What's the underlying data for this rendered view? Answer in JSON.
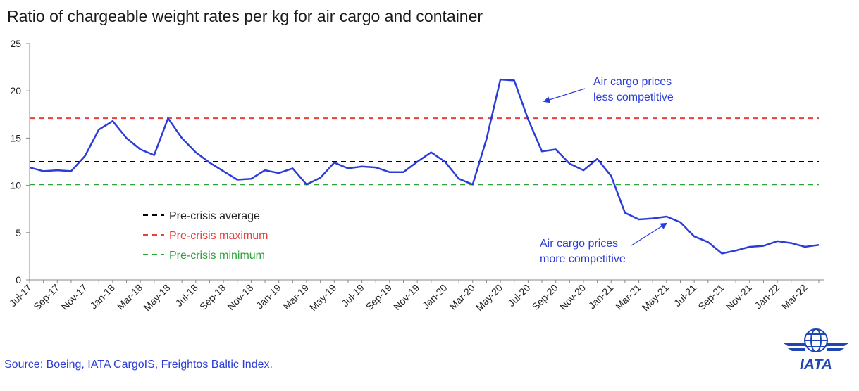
{
  "chart_data": {
    "type": "line",
    "title": "Ratio of chargeable weight rates per kg for air cargo and container",
    "ylim": [
      0,
      25
    ],
    "yticks": [
      0,
      5,
      10,
      15,
      20,
      25
    ],
    "x": [
      "Jul-17",
      "Aug-17",
      "Sep-17",
      "Oct-17",
      "Nov-17",
      "Dec-17",
      "Jan-18",
      "Feb-18",
      "Mar-18",
      "Apr-18",
      "May-18",
      "Jun-18",
      "Jul-18",
      "Aug-18",
      "Sep-18",
      "Oct-18",
      "Nov-18",
      "Dec-18",
      "Jan-19",
      "Feb-19",
      "Mar-19",
      "Apr-19",
      "May-19",
      "Jun-19",
      "Jul-19",
      "Aug-19",
      "Sep-19",
      "Oct-19",
      "Nov-19",
      "Dec-19",
      "Jan-20",
      "Feb-20",
      "Mar-20",
      "Apr-20",
      "May-20",
      "Jun-20",
      "Jul-20",
      "Aug-20",
      "Sep-20",
      "Oct-20",
      "Nov-20",
      "Dec-20",
      "Jan-21",
      "Feb-21",
      "Mar-21",
      "Apr-21",
      "May-21",
      "Jun-21",
      "Jul-21",
      "Aug-21",
      "Sep-21",
      "Oct-21",
      "Nov-21",
      "Dec-21",
      "Jan-22",
      "Feb-22",
      "Mar-22",
      "Apr-22"
    ],
    "xtick_labels": [
      "Jul-17",
      "Sep-17",
      "Nov-17",
      "Jan-18",
      "Mar-18",
      "May-18",
      "Jul-18",
      "Sep-18",
      "Nov-18",
      "Jan-19",
      "Mar-19",
      "May-19",
      "Jul-19",
      "Sep-19",
      "Nov-19",
      "Jan-20",
      "Mar-20",
      "May-20",
      "Jul-20",
      "Sep-20",
      "Nov-20",
      "Jan-21",
      "Mar-21",
      "May-21",
      "Jul-21",
      "Sep-21",
      "Nov-21",
      "Jan-22",
      "Mar-22"
    ],
    "series": [
      {
        "color": "#2b3dd8",
        "values": [
          11.9,
          11.5,
          11.6,
          11.5,
          13.1,
          15.9,
          16.8,
          15.0,
          13.8,
          13.2,
          17.1,
          15.0,
          13.5,
          12.4,
          11.5,
          10.6,
          10.7,
          11.6,
          11.3,
          11.8,
          10.1,
          10.8,
          12.4,
          11.8,
          12.0,
          11.9,
          11.4,
          11.4,
          12.5,
          13.5,
          12.5,
          10.7,
          10.1,
          14.9,
          21.2,
          21.1,
          17.0,
          13.6,
          13.8,
          12.3,
          11.6,
          12.8,
          11.0,
          7.1,
          6.4,
          6.5,
          6.7,
          6.1,
          4.6,
          4.0,
          2.8,
          3.1,
          3.5,
          3.6,
          4.1,
          3.9,
          3.5,
          3.7
        ]
      }
    ],
    "reference_lines": [
      {
        "label": "Pre-crisis average",
        "value": 12.5,
        "color": "#000000"
      },
      {
        "label": "Pre-crisis maximum",
        "value": 17.1,
        "color": "#e8403a"
      },
      {
        "label": "Pre-crisis minimum",
        "value": 10.1,
        "color": "#2ea33a"
      }
    ],
    "legend_position": "left-middle",
    "annotations": [
      {
        "lines": [
          "Air cargo prices",
          "less competitive"
        ]
      },
      {
        "lines": [
          "Air cargo prices",
          "more competitive"
        ]
      }
    ]
  },
  "source": "Source: Boeing, IATA CargoIS, Freightos Baltic Index.",
  "logo": {
    "text": "IATA",
    "icon": "globe-wings-icon",
    "color": "#1e46b4"
  }
}
